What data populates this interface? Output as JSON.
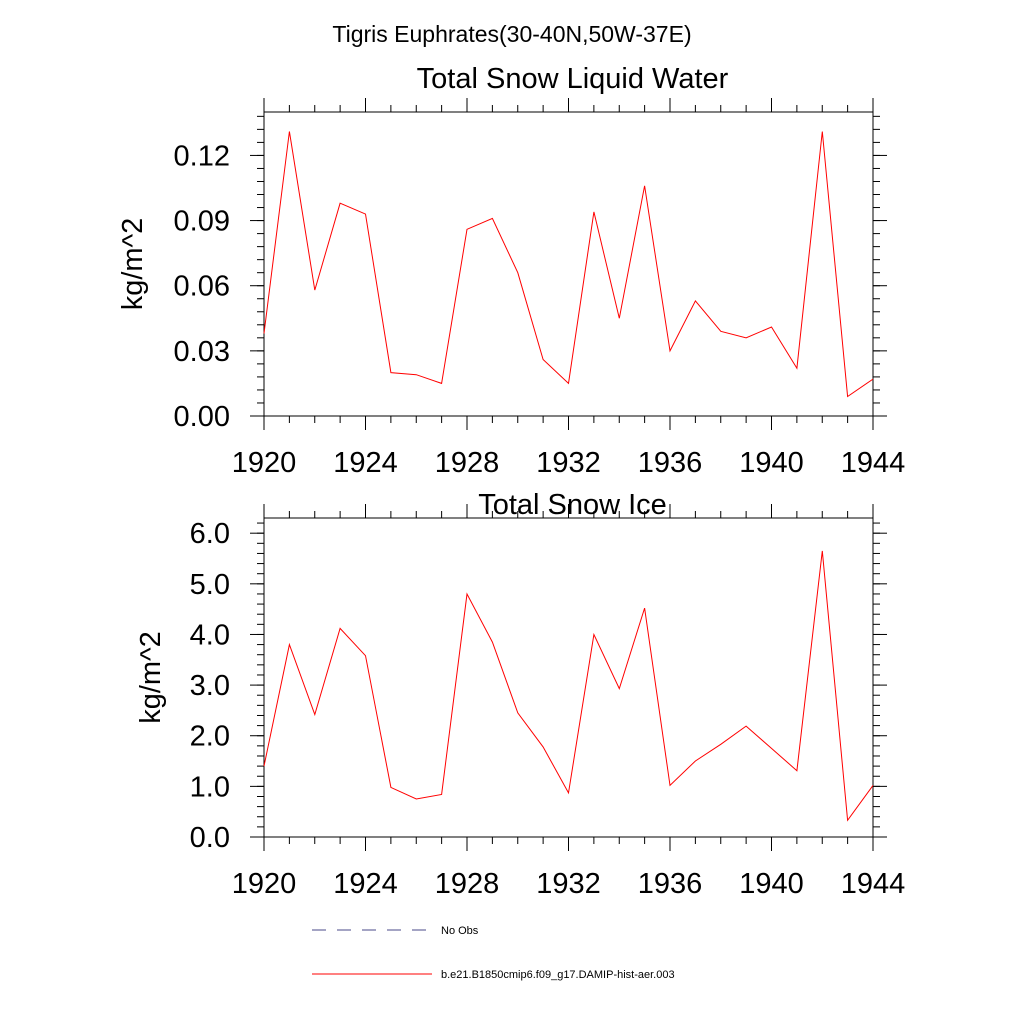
{
  "suptitle": "Tigris Euphrates(30-40N,50W-37E)",
  "legend": {
    "items": [
      {
        "label": "No Obs",
        "color": "#4a4a8a",
        "style": "dashed"
      },
      {
        "label": "b.e21.B1850cmip6.f09_g17.DAMIP-hist-aer.003",
        "color": "#ff0000",
        "style": "solid"
      }
    ]
  },
  "chart_data": [
    {
      "type": "line",
      "title": "Total Snow Liquid Water",
      "xlabel": "",
      "ylabel": "kg/m^2",
      "xlim": [
        1920,
        1944
      ],
      "ylim": [
        0,
        0.14
      ],
      "xticks": [
        "1920",
        "1924",
        "1928",
        "1932",
        "1936",
        "1940",
        "1944"
      ],
      "yticks": [
        "0.00",
        "0.03",
        "0.06",
        "0.09",
        "0.12"
      ],
      "x": [
        1920,
        1921,
        1922,
        1923,
        1924,
        1925,
        1926,
        1927,
        1928,
        1929,
        1930,
        1931,
        1932,
        1933,
        1934,
        1935,
        1936,
        1937,
        1938,
        1939,
        1940,
        1941,
        1942,
        1943,
        1944
      ],
      "series": [
        {
          "name": "b.e21.B1850cmip6.f09_g17.DAMIP-hist-aer.003",
          "color": "#ff0000",
          "values": [
            0.038,
            0.131,
            0.058,
            0.098,
            0.093,
            0.02,
            0.019,
            0.015,
            0.086,
            0.091,
            0.066,
            0.026,
            0.015,
            0.094,
            0.045,
            0.106,
            0.03,
            0.053,
            0.039,
            0.036,
            0.041,
            0.022,
            0.131,
            0.009,
            0.017
          ]
        }
      ]
    },
    {
      "type": "line",
      "title": "Total Snow Ice",
      "xlabel": "",
      "ylabel": "kg/m^2",
      "xlim": [
        1920,
        1944
      ],
      "ylim": [
        0,
        6.3
      ],
      "xticks": [
        "1920",
        "1924",
        "1928",
        "1932",
        "1936",
        "1940",
        "1944"
      ],
      "yticks": [
        "0.0",
        "1.0",
        "2.0",
        "3.0",
        "4.0",
        "5.0",
        "6.0"
      ],
      "x": [
        1920,
        1921,
        1922,
        1923,
        1924,
        1925,
        1926,
        1927,
        1928,
        1929,
        1930,
        1931,
        1932,
        1933,
        1934,
        1935,
        1936,
        1937,
        1938,
        1939,
        1940,
        1941,
        1942,
        1943,
        1944
      ],
      "series": [
        {
          "name": "b.e21.B1850cmip6.f09_g17.DAMIP-hist-aer.003",
          "color": "#ff0000",
          "values": [
            1.4,
            3.8,
            2.42,
            4.12,
            3.58,
            0.98,
            0.75,
            0.84,
            4.8,
            3.85,
            2.45,
            1.78,
            0.87,
            4.0,
            2.93,
            4.52,
            1.02,
            1.5,
            1.83,
            2.19,
            1.75,
            1.31,
            5.65,
            0.33,
            1.02
          ]
        }
      ]
    }
  ]
}
